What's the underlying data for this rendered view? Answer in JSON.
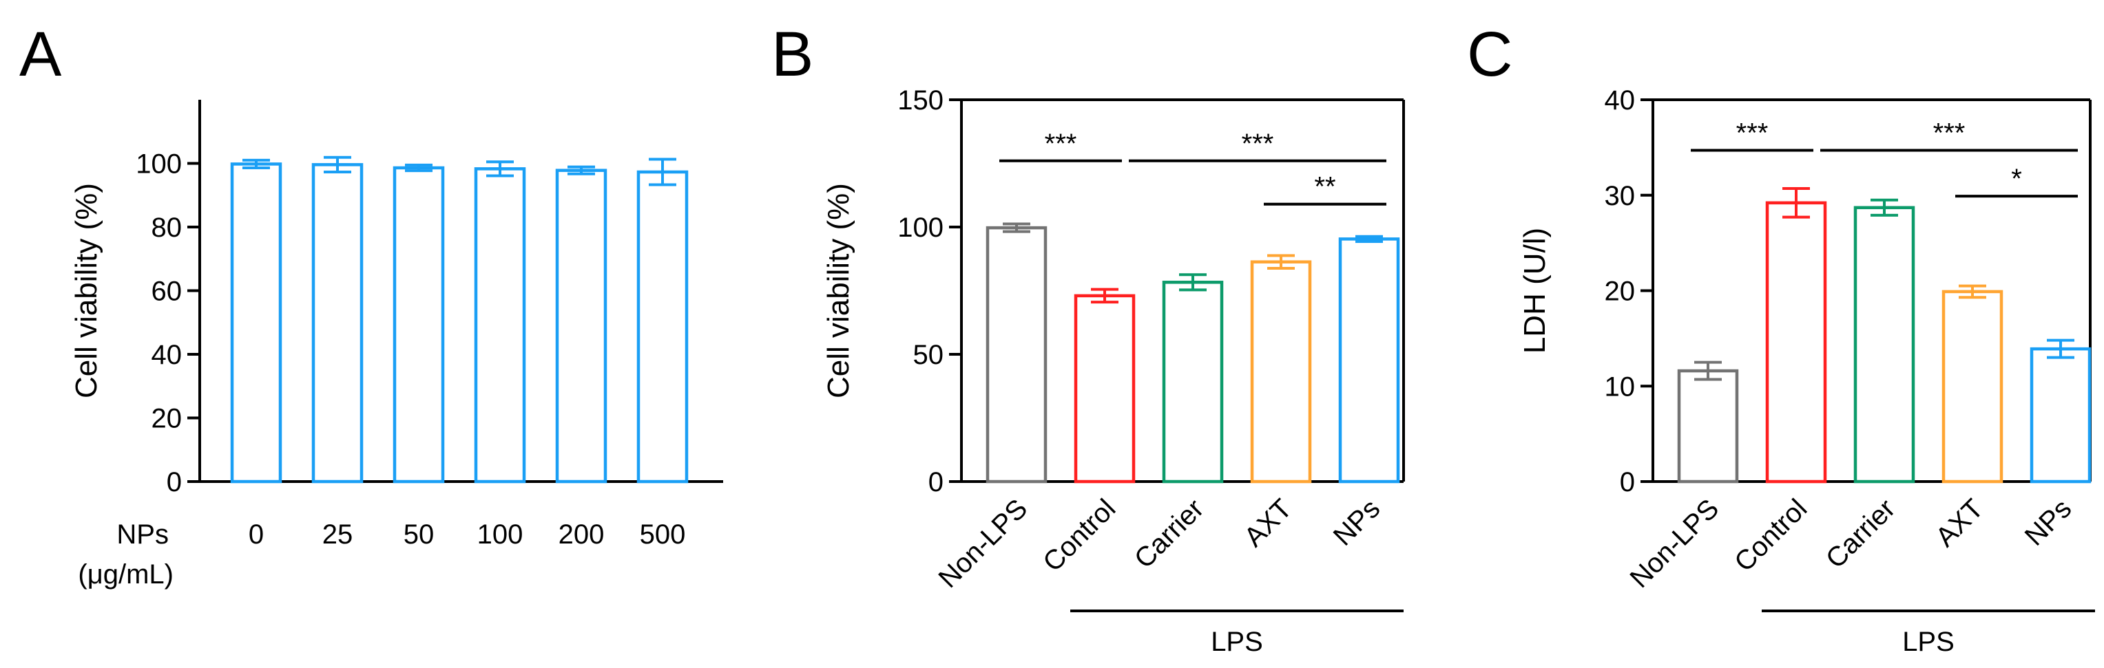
{
  "chart_data": [
    {
      "panel": "A",
      "type": "bar",
      "xlabel": "NPs",
      "xunit": "(μg/mL)",
      "ylabel": "Cell viability (%)",
      "ylim": [
        0,
        120
      ],
      "yticks": [
        0,
        20,
        40,
        60,
        80,
        100
      ],
      "categories": [
        "0",
        "25",
        "50",
        "100",
        "200",
        "500"
      ],
      "values": [
        99.8,
        99.6,
        98.6,
        98.3,
        97.8,
        97.3
      ],
      "errors": [
        1.2,
        2.3,
        0.9,
        2.2,
        1.1,
        4.0
      ],
      "colors": [
        "#1a9ff5",
        "#1a9ff5",
        "#1a9ff5",
        "#1a9ff5",
        "#1a9ff5",
        "#1a9ff5"
      ],
      "group_label": "",
      "significance": []
    },
    {
      "panel": "B",
      "type": "bar",
      "ylabel": "Cell viability (%)",
      "ylim": [
        0,
        150
      ],
      "yticks": [
        0,
        50,
        100,
        150
      ],
      "categories": [
        "Non-LPS",
        "Control",
        "Carrier",
        "AXT",
        "NPs"
      ],
      "values": [
        99.7,
        73.0,
        78.3,
        86.3,
        95.3
      ],
      "errors": [
        1.5,
        2.5,
        3.0,
        2.5,
        1.0
      ],
      "colors": [
        "#737373",
        "#ff2020",
        "#0c9b6a",
        "#ffa533",
        "#1a9ff5"
      ],
      "group_label": "LPS",
      "group_span": [
        1,
        4
      ],
      "significance": [
        {
          "from": 0,
          "to": 1,
          "y": 126,
          "label": "***"
        },
        {
          "from": 1,
          "to": 4,
          "y": 126,
          "label": "***"
        },
        {
          "from": 3,
          "to": 4,
          "y": 109,
          "label": "**"
        }
      ]
    },
    {
      "panel": "C",
      "type": "bar",
      "ylabel": "LDH (U/l)",
      "ylim": [
        0,
        40
      ],
      "yticks": [
        0,
        10,
        20,
        30,
        40
      ],
      "categories": [
        "Non-LPS",
        "Control",
        "Carrier",
        "AXT",
        "NPs"
      ],
      "values": [
        11.6,
        29.2,
        28.7,
        19.9,
        13.9
      ],
      "errors": [
        0.9,
        1.5,
        0.8,
        0.6,
        0.9
      ],
      "colors": [
        "#737373",
        "#ff2020",
        "#0c9b6a",
        "#ffa533",
        "#1a9ff5"
      ],
      "group_label": "LPS",
      "group_span": [
        1,
        4
      ],
      "significance": [
        {
          "from": 0,
          "to": 1,
          "y": 34.7,
          "label": "***"
        },
        {
          "from": 1,
          "to": 4,
          "y": 34.7,
          "label": "***"
        },
        {
          "from": 3,
          "to": 4,
          "y": 29.9,
          "label": "*"
        }
      ]
    }
  ]
}
